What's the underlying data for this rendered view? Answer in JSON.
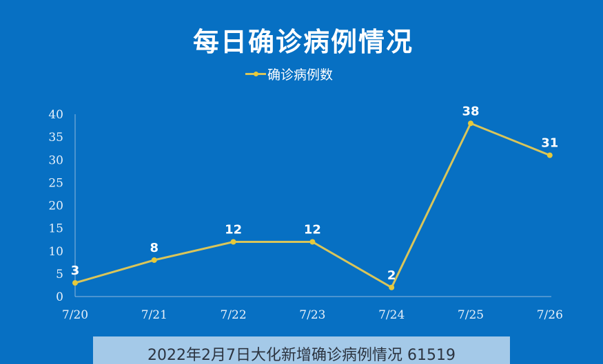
{
  "chart": {
    "title": "每日确诊病例情况",
    "legend_label": "确诊病例数"
  },
  "watermark": {
    "text": "2022年2月7日大化新增确诊病例情况  61519"
  },
  "colors": {
    "background": "#0770c3",
    "line": "#d9c55a",
    "marker": "#e6c93a",
    "axis": "#8fb8de",
    "text": "#ffffff",
    "watermark_bg": "#a4c9e8"
  },
  "chart_data": {
    "type": "line",
    "title": "每日确诊病例情况",
    "xlabel": "",
    "ylabel": "",
    "categories": [
      "7/20",
      "7/21",
      "7/22",
      "7/23",
      "7/24",
      "7/25",
      "7/26"
    ],
    "series": [
      {
        "name": "确诊病例数",
        "values": [
          3,
          8,
          12,
          12,
          2,
          38,
          31
        ]
      }
    ],
    "yticks": [
      0,
      5,
      10,
      15,
      20,
      25,
      30,
      35,
      40
    ],
    "ylim": [
      0,
      40
    ],
    "grid": false,
    "legend_position": "top",
    "data_labels": true
  }
}
